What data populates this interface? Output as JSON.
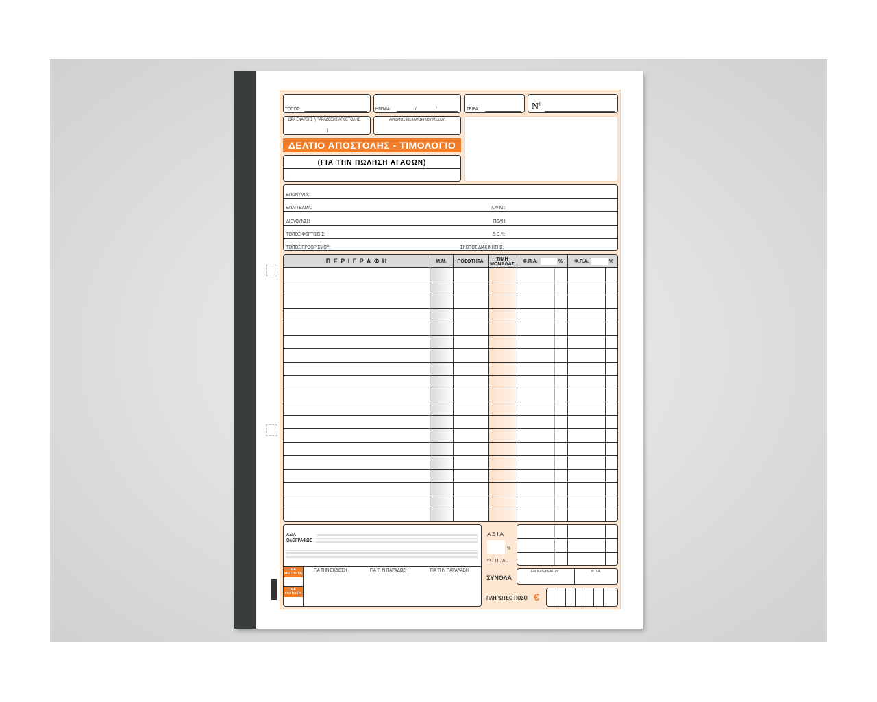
{
  "header": {
    "topos": "ΤΟΠΟΣ:",
    "date": "ΗΜ/ΝΙΑ:",
    "date_sep1": "/",
    "date_sep2": "/",
    "seira": "ΣΕΙΡΑ:",
    "number": "Nº",
    "start_time": "ΩΡΑ ΕΝΑΡΞΗΣ ή  ΠΑΡΑΔΟΣΗΣ ΑΠΟΣΤΟΛΗΣ:",
    "time_sep": "|",
    "vehicle": "ΑΡΙΘΜΟΣ ΜΕΤΑΦΟΡΙΚΟΥ ΜΕΣΟΥ:"
  },
  "title": "ΔΕΛΤΙΟ ΑΠΟΣΤΟΛΗΣ - ΤΙΜΟΛΟΓΙΟ",
  "subtitle": "(ΓΙΑ ΤΗΝ ΠΩΛΗΣΗ ΑΓΑΘΩΝ)",
  "customer": {
    "name": "ΕΠΩΝΥΜΙΑ:",
    "profession": "ΕΠΑΓΓΕΛΜΑ:",
    "afm": "Α.Φ.Μ.:",
    "address": "ΔΙΕΥΘΥΝΣΗ:",
    "city": "ΠΟΛΗ:",
    "loading": "ΤΟΠΟΣ ΦΟΡΤΩΣΗΣ:",
    "doy": "Δ.Ο.Υ.:",
    "destination": "ΤΟΠΟΣ ΠΡΟΟΡΙΣΜΟΥ:",
    "purpose": "ΣΚΟΠΟΣ ΔΙΑΚΙΝΗΣΗΣ:"
  },
  "table": {
    "description": "Π Ε Ρ Ι Γ Ρ Α Φ Η",
    "unit": "Μ.Μ.",
    "quantity": "ΠΟΣΟΤΗΤΑ",
    "unit_price": "ΤΙΜΗ ΜΟΝΑΔΑΣ",
    "vat1": "Φ.Π.Α.",
    "vat2": "Φ.Π.Α.",
    "pct": "%"
  },
  "footer": {
    "value": "ΑΞΙΑ",
    "in_words": "ΟΛΟΓΡΑΦΩΣ",
    "cash": "ΜΕ ΜΕΤΡΗΤΑ",
    "credit": "ΜΕ ΠΙΣΤΩΣΗ",
    "issue": "ΓΙΑ ΤΗΝ ΕΚΔΟΣΗ",
    "delivery": "ΓΙΑ ΤΗΝ ΠΑΡΑΔΟΣΗ",
    "receipt": "ΓΙΑ ΤΗΝ ΠΑΡΑΛΑΒΗ",
    "axia": "Α  Ξ  Ι  Α",
    "pct": "%",
    "fpa": "Φ . Π . Α .",
    "totals": "ΣΥΝΟΛΑ",
    "goods": "ΕΜΠΟΡΕΥΜΑΤΩΝ",
    "fpa_short": "Φ.Π.Α.",
    "payable": "ΠΛΗΡΩΤΕΟ ΠΟΣΟ",
    "euro": "€"
  },
  "colors": {
    "accent": "#f07d2a",
    "form_bg": "#fde6d2",
    "spine": "#3a3d3d"
  }
}
